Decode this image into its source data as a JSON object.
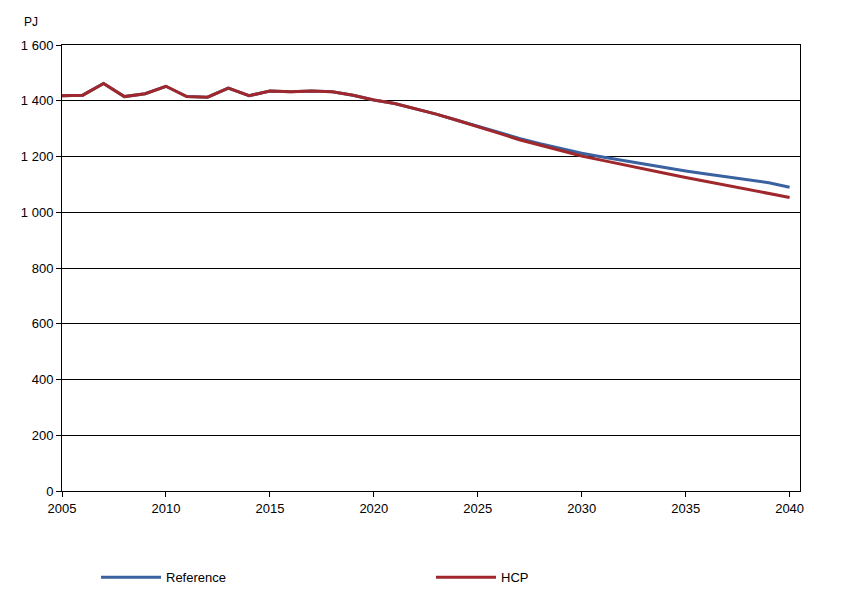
{
  "chart_data": {
    "type": "line",
    "ylabel": "PJ",
    "x": [
      2005,
      2006,
      2007,
      2008,
      2009,
      2010,
      2011,
      2012,
      2013,
      2014,
      2015,
      2016,
      2017,
      2018,
      2019,
      2020,
      2021,
      2022,
      2023,
      2024,
      2025,
      2026,
      2027,
      2028,
      2029,
      2030,
      2031,
      2032,
      2033,
      2034,
      2035,
      2036,
      2037,
      2038,
      2039,
      2040
    ],
    "series": [
      {
        "name": "Reference",
        "color": "#3a62a0",
        "values": [
          1418,
          1420,
          1462,
          1415,
          1425,
          1452,
          1415,
          1413,
          1445,
          1418,
          1435,
          1432,
          1435,
          1432,
          1420,
          1403,
          1390,
          1372,
          1352,
          1330,
          1308,
          1285,
          1265,
          1246,
          1228,
          1212,
          1198,
          1185,
          1172,
          1160,
          1148,
          1137,
          1126,
          1116,
          1106,
          1090
        ]
      },
      {
        "name": "HCP",
        "color": "#a0282c",
        "values": [
          1418,
          1420,
          1462,
          1415,
          1425,
          1452,
          1415,
          1413,
          1445,
          1418,
          1435,
          1432,
          1435,
          1432,
          1420,
          1403,
          1390,
          1372,
          1352,
          1330,
          1308,
          1284,
          1260,
          1240,
          1220,
          1202,
          1186,
          1170,
          1155,
          1140,
          1125,
          1111,
          1097,
          1083,
          1069,
          1053
        ]
      }
    ],
    "xlim": [
      2005,
      2040.5
    ],
    "xticks": [
      2005,
      2010,
      2015,
      2020,
      2025,
      2030,
      2035,
      2040
    ],
    "ylim": [
      0,
      1600
    ],
    "yticks": [
      0,
      200,
      400,
      600,
      800,
      {
        "value": 1000,
        "label": "1 000"
      },
      {
        "value": 1200,
        "label": "1 200"
      },
      {
        "value": 1400,
        "label": "1 400"
      },
      {
        "value": 1600,
        "label": "1 600"
      }
    ],
    "grid": true,
    "legend": "bottom"
  }
}
